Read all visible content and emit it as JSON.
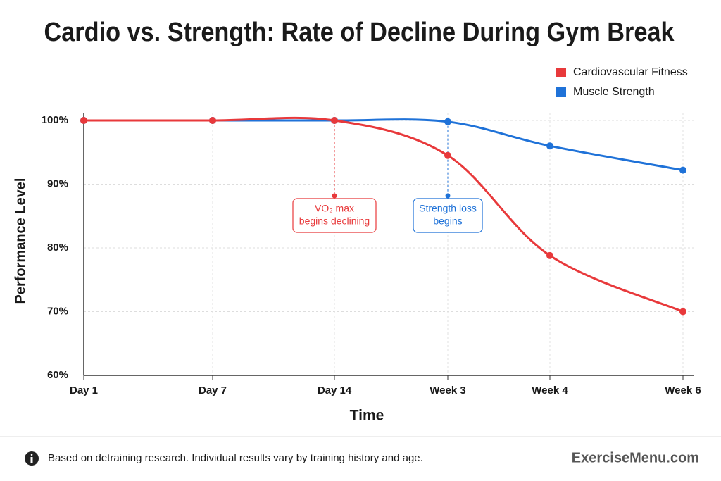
{
  "chart_data": {
    "type": "line",
    "title": "Cardio vs. Strength: Rate of Decline During Gym Break",
    "x_label": "Time",
    "y_label": "Performance Level",
    "categories": [
      "Day 1",
      "Day 7",
      "Day 14",
      "Week 3",
      "Week 4",
      "Week 6"
    ],
    "series": [
      {
        "name": "Cardiovascular Fitness",
        "color": "#e8393b",
        "values": [
          100,
          100,
          100,
          94.5,
          78.8,
          70
        ]
      },
      {
        "name": "Muscle Strength",
        "color": "#1f72d8",
        "values": [
          100,
          100,
          100,
          99.8,
          96,
          92.2
        ]
      }
    ],
    "ylim": [
      60,
      100
    ],
    "yticks": [
      {
        "value": 60,
        "label": "60%"
      },
      {
        "value": 70,
        "label": "70%"
      },
      {
        "value": 80,
        "label": "80%"
      },
      {
        "value": 90,
        "label": "90%"
      },
      {
        "value": 100,
        "label": "100%"
      }
    ],
    "grid": true,
    "legend": "top-right",
    "annotations": [
      {
        "lines": [
          "VO₂ max",
          "begins declining"
        ],
        "color": "#e8393b"
      },
      {
        "lines": [
          "Strength loss",
          "begins"
        ],
        "color": "#1f72d8"
      }
    ]
  },
  "footer": {
    "note": "Based on detraining research. Individual results vary by training history and age.",
    "brand": "ExerciseMenu.com"
  }
}
